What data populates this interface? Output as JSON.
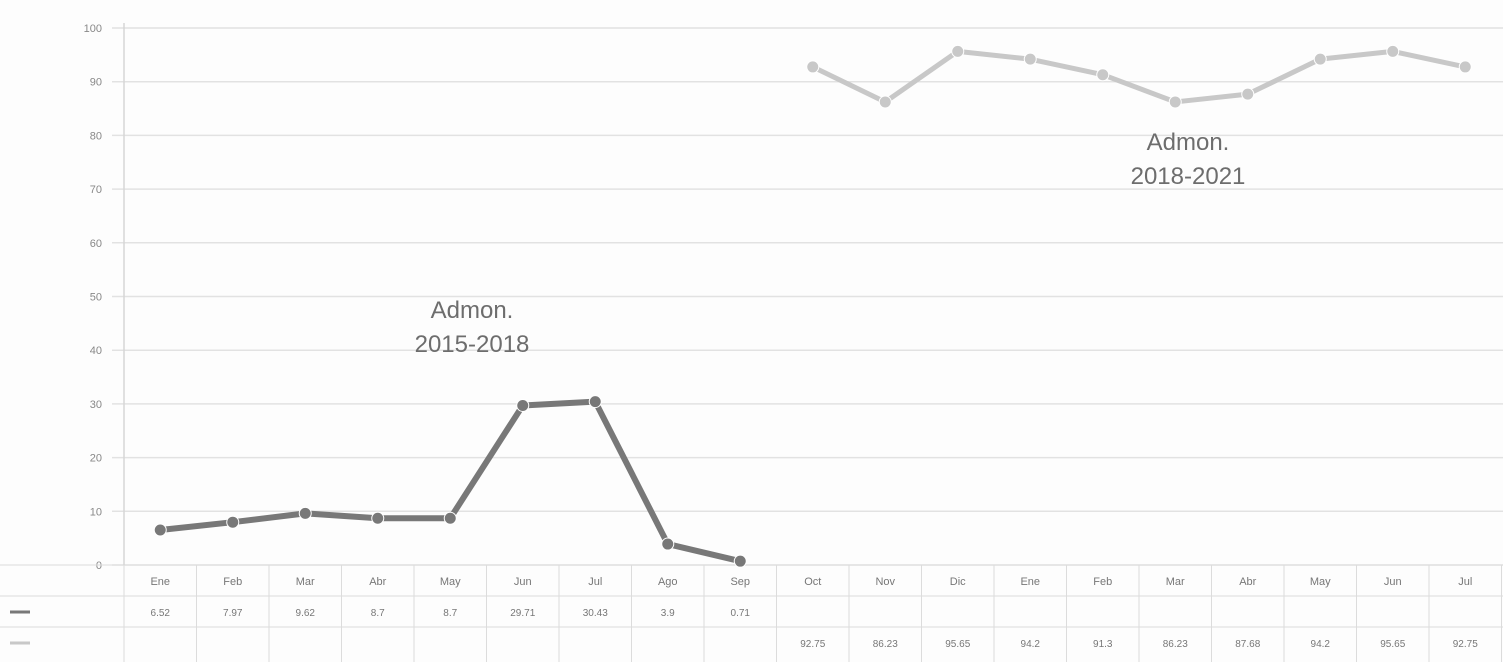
{
  "chart_data": {
    "type": "line",
    "title": "",
    "xlabel": "",
    "ylabel": "",
    "ylim": [
      0,
      100
    ],
    "yticks": [
      "0",
      "10",
      "20",
      "30",
      "40",
      "50",
      "60",
      "70",
      "80",
      "90",
      "100"
    ],
    "categories": [
      "Ene",
      "Feb",
      "Mar",
      "Abr",
      "May",
      "Jun",
      "Jul",
      "Ago",
      "Sep",
      "Oct",
      "Nov",
      "Dic",
      "Ene",
      "Feb",
      "Mar",
      "Abr",
      "May",
      "Jun",
      "Jul"
    ],
    "series": [
      {
        "name": "",
        "color": "#787878",
        "values": [
          6.52,
          7.97,
          9.62,
          8.7,
          8.7,
          29.71,
          30.43,
          3.9,
          0.71,
          null,
          null,
          null,
          null,
          null,
          null,
          null,
          null,
          null,
          null
        ],
        "labels": [
          "6.52",
          "7.97",
          "9.62",
          "8.7",
          "8.7",
          "29.71",
          "30.43",
          "3.9",
          "0.71",
          "",
          "",
          "",
          "",
          "",
          "",
          "",
          "",
          "",
          ""
        ]
      },
      {
        "name": "",
        "color": "#c8c8c8",
        "values": [
          null,
          null,
          null,
          null,
          null,
          null,
          null,
          null,
          null,
          92.75,
          86.23,
          95.65,
          94.2,
          91.3,
          86.23,
          87.68,
          94.2,
          95.65,
          92.75
        ],
        "labels": [
          "",
          "",
          "",
          "",
          "",
          "",
          "",
          "",
          "",
          "92.75",
          "86.23",
          "95.65",
          "94.2",
          "91.3",
          "86.23",
          "87.68",
          "94.2",
          "95.65",
          "92.75"
        ]
      }
    ],
    "annotations": [
      {
        "lines": [
          "Admon.",
          "2015-2018"
        ]
      },
      {
        "lines": [
          "Admon.",
          "2018-2021"
        ]
      }
    ]
  }
}
